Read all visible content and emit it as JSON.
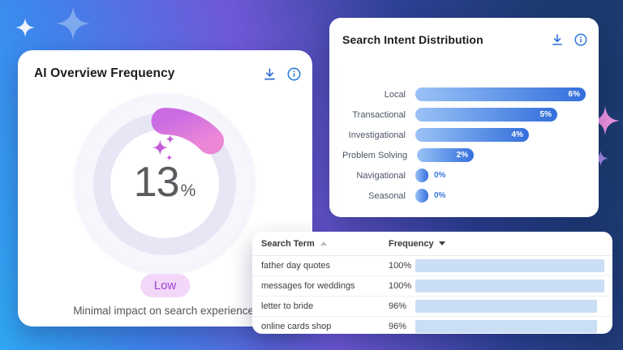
{
  "decor": {
    "background_gradient": [
      "#2fa7f3",
      "#3f84ec",
      "#6f58d7",
      "#2c4193",
      "#1c3a6e"
    ],
    "sparkles": [
      {
        "name": "sparkle-top-left-small",
        "color": "#edf1fd"
      },
      {
        "name": "sparkle-top-left-large",
        "color": "#7fa9ee"
      },
      {
        "name": "sparkle-right-pink",
        "color": "#ef93e0"
      },
      {
        "name": "sparkle-right-purple",
        "color": "#a689e9"
      }
    ]
  },
  "ai_overview_card": {
    "title": "AI Overview Frequency",
    "value": "13",
    "unit": "%",
    "badge_label": "Low",
    "badge_bg_color": "#f2d7f8",
    "badge_text_color": "#9c43cf",
    "caption": "Minimal impact on search experience.",
    "ring_color": "#e6e6f5",
    "arc_gradient": {
      "start": "#cb6ce2",
      "end": "#ec87d7"
    },
    "sparkle_color": "#c45ad8",
    "icon_color": "#2e6fd6",
    "icons": [
      "download-icon",
      "info-icon"
    ]
  },
  "search_intent_card": {
    "title": "Search Intent Distribution",
    "bar_gradient": {
      "start": "#9ac2f6",
      "end": "#336fdc"
    },
    "zero_label_color": "#3a78de",
    "icon_color": "#2e6fd6",
    "icons": [
      "download-icon",
      "info-icon"
    ]
  },
  "search_term_table": {
    "columns": [
      {
        "label": "Search Term",
        "sort": "asc"
      },
      {
        "label": "Frequency",
        "sort": "desc"
      }
    ],
    "bar_color": "#cadef4"
  },
  "chart_data": [
    {
      "type": "donut",
      "title": "AI Overview Frequency",
      "value": 13,
      "unit": "%",
      "label": "Low",
      "caption": "Minimal impact on search experience.",
      "arc_color": "#e07bda",
      "track_color": "#e6e6f5"
    },
    {
      "type": "bar",
      "title": "Search Intent Distribution",
      "orientation": "horizontal",
      "categories": [
        "Local",
        "Transactional",
        "Investigational",
        "Problem Solving",
        "Navigational",
        "Seasonal"
      ],
      "values": [
        6,
        5,
        4,
        2,
        0,
        0
      ],
      "value_labels": [
        "6%",
        "5%",
        "4%",
        "2%",
        "0%",
        "0%"
      ],
      "xlim": [
        0,
        6
      ],
      "grid": false,
      "legend": false
    },
    {
      "type": "table",
      "columns": [
        "Search Term",
        "Frequency"
      ],
      "rows": [
        {
          "term": "father day quotes",
          "frequency": "100%",
          "value": 100
        },
        {
          "term": "messages for weddings",
          "frequency": "100%",
          "value": 100
        },
        {
          "term": "letter to bride",
          "frequency": "96%",
          "value": 96
        },
        {
          "term": "online cards shop",
          "frequency": "96%",
          "value": 96
        }
      ]
    }
  ]
}
